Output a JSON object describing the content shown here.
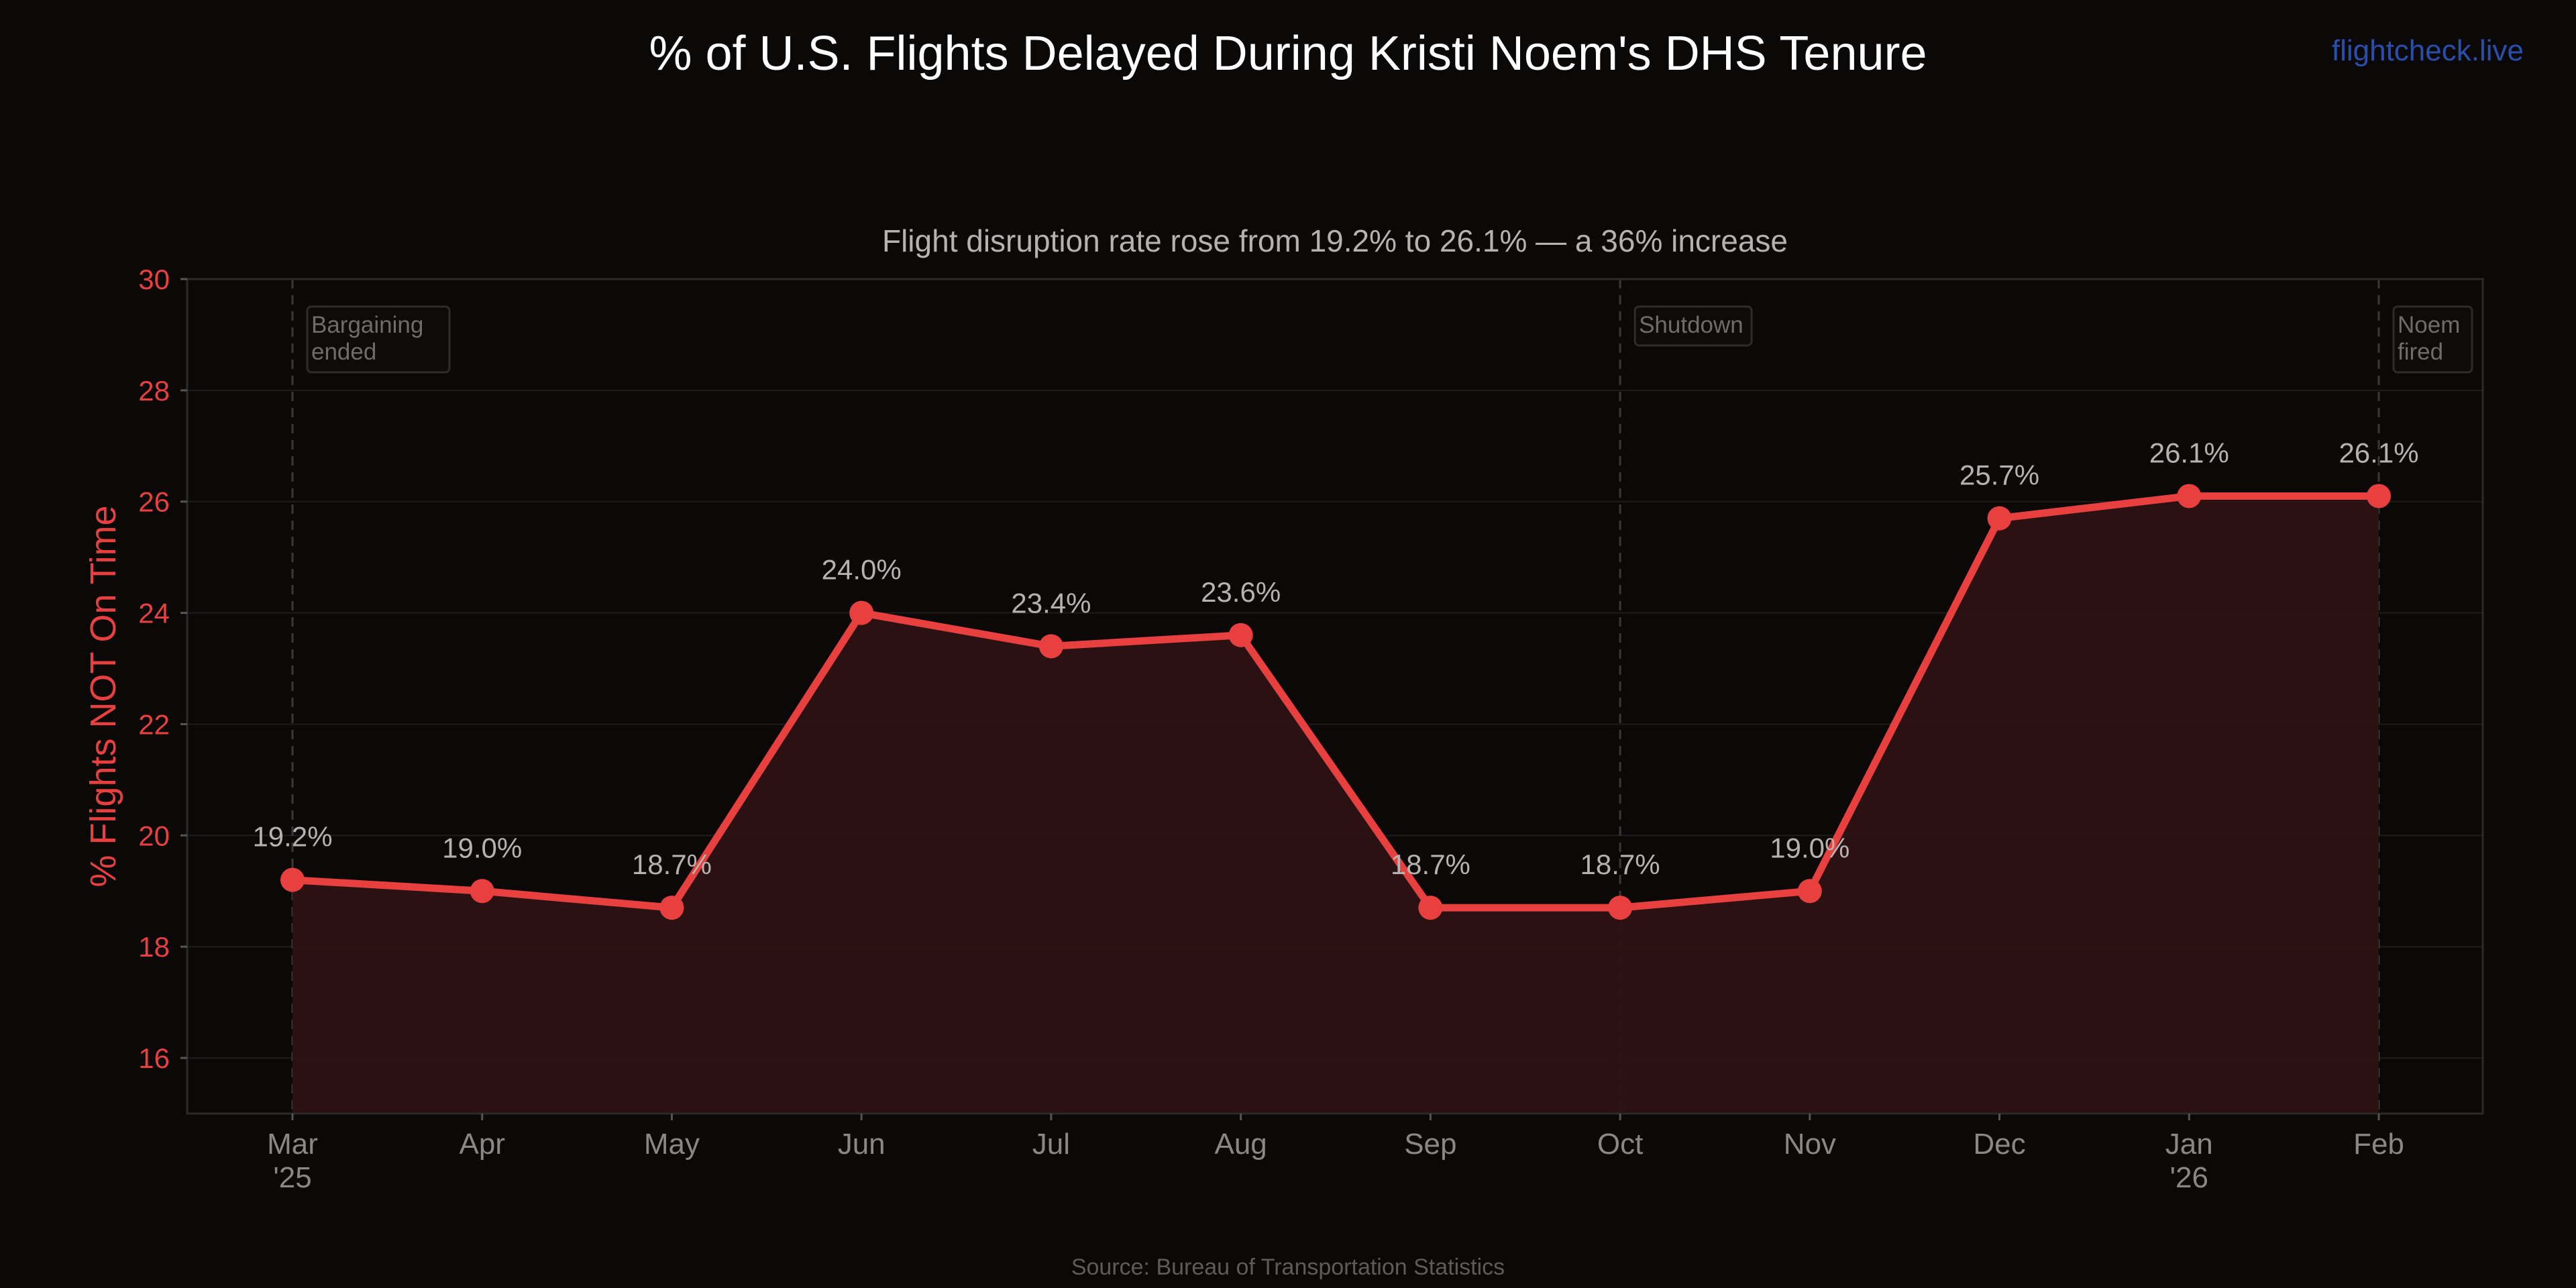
{
  "header": {
    "title": "% of U.S. Flights Delayed During Kristi Noem's DHS Tenure",
    "brand": "flightcheck.live"
  },
  "footer": {
    "source": "Source: Bureau of Transportation Statistics"
  },
  "colors": {
    "background": "#0a0908",
    "line": "#e8403f",
    "fill": "#2e1213",
    "axis_label": "#e8403f",
    "brand": "#2a4faa",
    "text_muted": "#8a8785"
  },
  "chart_data": {
    "type": "line",
    "title": "% of U.S. Flights Delayed During Kristi Noem's DHS Tenure",
    "subtitle": "Flight disruption rate rose from 19.2% to 26.1% — a 36% increase",
    "xlabel": "",
    "ylabel": "% Flights NOT On Time",
    "ylim": [
      15,
      30
    ],
    "yticks": [
      16,
      18,
      20,
      22,
      24,
      26,
      28,
      30
    ],
    "grid": true,
    "area_fill": true,
    "categories": [
      {
        "month": "Mar",
        "year": "'25"
      },
      {
        "month": "Apr",
        "year": ""
      },
      {
        "month": "May",
        "year": ""
      },
      {
        "month": "Jun",
        "year": ""
      },
      {
        "month": "Jul",
        "year": ""
      },
      {
        "month": "Aug",
        "year": ""
      },
      {
        "month": "Sep",
        "year": ""
      },
      {
        "month": "Oct",
        "year": ""
      },
      {
        "month": "Nov",
        "year": ""
      },
      {
        "month": "Dec",
        "year": ""
      },
      {
        "month": "Jan",
        "year": "'26"
      },
      {
        "month": "Feb",
        "year": ""
      }
    ],
    "values": [
      19.2,
      19.0,
      18.7,
      24.0,
      23.4,
      23.6,
      18.7,
      18.7,
      19.0,
      25.7,
      26.1,
      26.1
    ],
    "data_labels": [
      "19.2%",
      "19.0%",
      "18.7%",
      "24.0%",
      "23.4%",
      "23.6%",
      "18.7%",
      "18.7%",
      "19.0%",
      "25.7%",
      "26.1%",
      "26.1%"
    ],
    "annotations": [
      {
        "at": "Mar",
        "lines": [
          "Bargaining",
          "ended"
        ]
      },
      {
        "at": "Oct",
        "lines": [
          "Shutdown"
        ]
      },
      {
        "at": "Feb",
        "lines": [
          "Noem",
          "fired"
        ]
      }
    ]
  }
}
